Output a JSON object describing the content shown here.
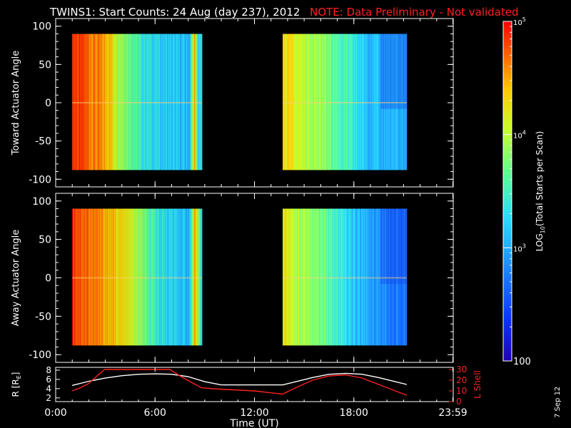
{
  "title": {
    "main": "TWINS1: Start Counts: 24 Aug (day 237), 2012",
    "note": "NOTE: Data Preliminary - Not validated"
  },
  "stamp": "7 Sep 12",
  "colors": {
    "background": "#000000",
    "foreground": "#ffffff",
    "note": "#ff2020",
    "lshell": "#ff2020",
    "radius": "#ffffff"
  },
  "chart_data": [
    {
      "type": "heatmap",
      "panel": "toward",
      "ylabel": "Toward Actuator Angle",
      "ylim": [
        -110,
        110
      ],
      "yticks": [
        "100",
        "50",
        "0",
        "-50",
        "-100"
      ],
      "ytick_values": [
        100,
        50,
        0,
        -50,
        -100
      ],
      "xlim": [
        0,
        24
      ],
      "data_extent": [
        -88,
        90
      ],
      "segments": [
        {
          "start_h": 1.0,
          "end_h": 8.85,
          "profile": [
            [
              1.0,
              4.9
            ],
            [
              1.4,
              4.8
            ],
            [
              2.4,
              4.6
            ],
            [
              3.3,
              4.4
            ],
            [
              3.7,
              4.05
            ],
            [
              4.4,
              3.8
            ],
            [
              5.2,
              3.4
            ],
            [
              6.6,
              3.2
            ],
            [
              8.1,
              3.1
            ],
            [
              8.4,
              4.5
            ],
            [
              8.6,
              3.3
            ],
            [
              8.85,
              3.3
            ]
          ]
        },
        {
          "start_h": 13.7,
          "end_h": 21.2,
          "profile": [
            [
              13.7,
              4.3
            ],
            [
              14.6,
              4.1
            ],
            [
              15.8,
              3.9
            ],
            [
              17.5,
              3.5
            ],
            [
              18.5,
              3.2
            ],
            [
              19.5,
              3.05
            ],
            [
              21.2,
              3.0
            ]
          ]
        }
      ]
    },
    {
      "type": "heatmap",
      "panel": "away",
      "ylabel": "Away Actuator Angle",
      "ylim": [
        -110,
        110
      ],
      "yticks": [
        "100",
        "50",
        "0",
        "-50",
        "-100"
      ],
      "ytick_values": [
        100,
        50,
        0,
        -50,
        -100
      ],
      "xlim": [
        0,
        24
      ],
      "data_extent": [
        -88,
        90
      ],
      "segments": [
        {
          "start_h": 1.0,
          "end_h": 8.85,
          "profile": [
            [
              1.0,
              4.9
            ],
            [
              1.8,
              4.7
            ],
            [
              3.0,
              4.5
            ],
            [
              4.2,
              4.2
            ],
            [
              5.0,
              3.9
            ],
            [
              5.6,
              3.55
            ],
            [
              6.6,
              3.3
            ],
            [
              8.1,
              3.1
            ],
            [
              8.4,
              4.4
            ],
            [
              8.85,
              3.3
            ]
          ]
        },
        {
          "start_h": 13.7,
          "end_h": 21.2,
          "profile": [
            [
              13.7,
              4.3
            ],
            [
              14.6,
              4.0
            ],
            [
              15.8,
              3.8
            ],
            [
              17.5,
              3.3
            ],
            [
              18.5,
              3.05
            ],
            [
              19.5,
              2.9
            ],
            [
              21.2,
              2.7
            ]
          ]
        }
      ]
    },
    {
      "type": "line",
      "panel": "orbit",
      "xlabel": "Time (UT)",
      "ylabel_left": "R [R",
      "ylabel_left_sub": "E",
      "ylabel_left_close": "]",
      "ylabel_right": "L Shell",
      "x_ticklabels": [
        "0:00",
        "6:00",
        "12:00",
        "18:00",
        "23:59"
      ],
      "x_tick_values": [
        0,
        6,
        12,
        18,
        23.98
      ],
      "y_left_ticks": [
        "8",
        "6",
        "4",
        "2"
      ],
      "y_left_tick_values": [
        8,
        6,
        4,
        2
      ],
      "y_left_lim": [
        1.2,
        8.6
      ],
      "y_right_ticks": [
        "30",
        "20",
        "10",
        "0"
      ],
      "y_right_tick_values": [
        30,
        20,
        10,
        0
      ],
      "y_right_lim": [
        0,
        32
      ],
      "series": [
        {
          "key": "r",
          "axis": "left",
          "x": [
            1.0,
            2.0,
            3.0,
            4.0,
            5.0,
            6.0,
            7.0,
            8.0,
            9.0,
            10.0,
            11.0,
            12.0,
            13.0,
            13.7,
            14.5,
            15.5,
            16.5,
            17.5,
            18.5,
            19.5,
            20.5,
            21.2
          ],
          "y": [
            4.7,
            5.6,
            6.3,
            6.8,
            7.1,
            7.2,
            7.1,
            6.6,
            5.5,
            4.8,
            4.8,
            4.8,
            4.8,
            4.8,
            5.5,
            6.4,
            7.1,
            7.3,
            7.1,
            6.4,
            5.5,
            4.9
          ]
        },
        {
          "key": "l",
          "axis": "right",
          "x": [
            1.0,
            1.5,
            2.0,
            2.5,
            2.95,
            6.9,
            7.5,
            8.2,
            8.8,
            9.5,
            12.0,
            13.7,
            14.5,
            15.5,
            16.5,
            17.5,
            18.5,
            19.5,
            20.5,
            21.2
          ],
          "y": [
            10,
            13,
            17,
            24,
            30,
            30,
            24,
            18,
            13,
            12,
            10,
            7,
            13,
            20,
            24,
            25,
            22,
            16,
            10,
            6
          ]
        }
      ]
    },
    {
      "type": "colorbar",
      "label_main": "LOG",
      "label_sub": "10",
      "label_rest": "(Total Starts per Scan)",
      "scale": "log",
      "range": [
        100,
        100000
      ],
      "tick_labels": [
        {
          "value": 100000,
          "base": "10",
          "exp": "5"
        },
        {
          "value": 10000,
          "base": "10",
          "exp": "4"
        },
        {
          "value": 1000,
          "base": "10",
          "exp": "3"
        },
        {
          "value": 100,
          "base": "100",
          "exp": ""
        }
      ]
    }
  ]
}
